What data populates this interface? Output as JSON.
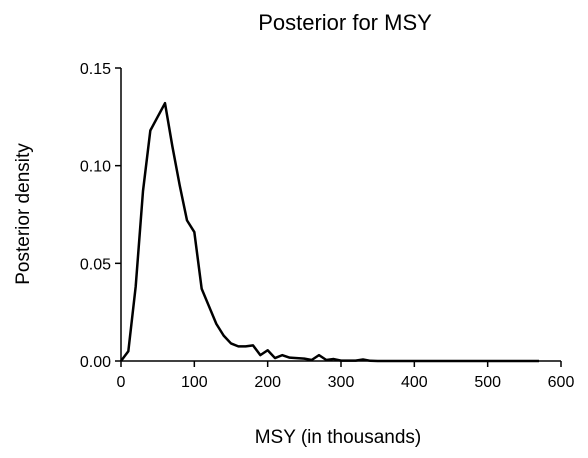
{
  "chart_data": {
    "type": "line",
    "title": "Posterior for MSY",
    "xlabel": "MSY (in thousands)",
    "ylabel": "Posterior density",
    "xlim": [
      0,
      600
    ],
    "ylim": [
      0,
      0.15
    ],
    "x_ticks": [
      "0",
      "100",
      "200",
      "300",
      "400",
      "500",
      "600"
    ],
    "y_ticks": [
      "0.00",
      "0.05",
      "0.10",
      "0.15"
    ],
    "grid": false,
    "legend": "none",
    "line_color": "#000000",
    "series": [
      {
        "x": [
          0,
          10,
          20,
          30,
          40,
          50,
          60,
          70,
          80,
          90,
          100,
          110,
          120,
          130,
          140,
          150,
          160,
          170,
          180,
          190,
          200,
          210,
          220,
          230,
          240,
          250,
          260,
          270,
          280,
          290,
          300,
          310,
          320,
          330,
          340,
          350,
          360,
          370,
          380,
          390,
          400,
          420,
          440,
          460,
          480,
          500,
          520,
          540,
          570
        ],
        "y": [
          0.0,
          0.005,
          0.038,
          0.087,
          0.118,
          0.125,
          0.132,
          0.11,
          0.09,
          0.072,
          0.066,
          0.037,
          0.028,
          0.019,
          0.013,
          0.009,
          0.0075,
          0.0075,
          0.008,
          0.003,
          0.0055,
          0.0015,
          0.003,
          0.0017,
          0.0015,
          0.0012,
          0.0005,
          0.003,
          0.0005,
          0.001,
          0.0002,
          0.0002,
          0.0002,
          0.0008,
          0.0001,
          0.0,
          0.0,
          0.0,
          0.0,
          0.0,
          0.0,
          0.0,
          0.0,
          0.0,
          0.0,
          0.0,
          0.0,
          0.0,
          0.0
        ]
      }
    ]
  }
}
